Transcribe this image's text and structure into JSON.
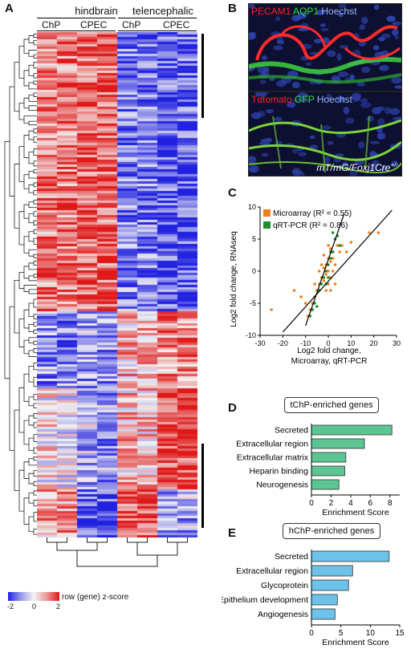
{
  "panels": {
    "A": "A",
    "B": "B",
    "C": "C",
    "D": "D",
    "E": "E"
  },
  "heatmap": {
    "group1": "hindbrain",
    "group2": "telencephalic",
    "cols": [
      "ChP",
      "CPEC",
      "ChP",
      "CPEC"
    ],
    "legend_label": "row (gene) z-score",
    "legend_ticks": [
      "-2",
      "0",
      "2"
    ],
    "colors": {
      "low": "#2121e0",
      "mid": "#f2f2f2",
      "high": "#e01818"
    }
  },
  "microscopy": {
    "top": {
      "label1": "PECAM1",
      "label2": "AQP1",
      "label3": "Hoechst",
      "c1": "#ff2020",
      "c2": "#30e030",
      "c3": "#9ab8ff"
    },
    "bottom": {
      "label1": "Tdtomato",
      "label2": "GFP",
      "label3": "Hoechst",
      "caption": "mT/mG/Foxj1Cre",
      "sup": "+/-",
      "c1": "#ff2020",
      "c2": "#30e030",
      "c3": "#9ab8ff"
    }
  },
  "chart_data": [
    {
      "type": "scatter",
      "xlabel_line1": "Log2 fold change,",
      "xlabel_line2": "Microarray, qRT-PCR",
      "ylabel": "Log2 fold change, RNAseq",
      "xlim": [
        -30,
        30
      ],
      "ylim": [
        -10,
        10
      ],
      "xticks": [
        -30,
        -20,
        -10,
        0,
        10,
        20,
        30
      ],
      "yticks": [
        -10,
        -5,
        0,
        5,
        10
      ],
      "series": [
        {
          "name": "Microarray (R² = 0.55)",
          "color": "#f07f1f",
          "points": [
            [
              -3,
              1
            ],
            [
              -2,
              0.5
            ],
            [
              -1,
              -0.5
            ],
            [
              0,
              0
            ],
            [
              1,
              1.5
            ],
            [
              2,
              2
            ],
            [
              -4,
              -2
            ],
            [
              -5,
              -3
            ],
            [
              -6,
              -4
            ],
            [
              1,
              -1
            ],
            [
              3,
              1
            ],
            [
              -2,
              -1.5
            ],
            [
              0,
              2
            ],
            [
              2,
              3
            ],
            [
              4,
              4
            ],
            [
              -1,
              1
            ],
            [
              -3,
              -1
            ],
            [
              -7,
              -5
            ],
            [
              -8,
              -6
            ],
            [
              5,
              3
            ],
            [
              0,
              -2
            ],
            [
              -1,
              -3
            ],
            [
              2,
              0
            ],
            [
              1,
              3.5
            ],
            [
              -2,
              2.5
            ],
            [
              6,
              4
            ],
            [
              8,
              3
            ],
            [
              -10,
              -5
            ],
            [
              -15,
              -3
            ],
            [
              -25,
              -6
            ],
            [
              22,
              6
            ],
            [
              18,
              6
            ],
            [
              10,
              4.5
            ],
            [
              -12,
              -4
            ],
            [
              -6,
              -2
            ],
            [
              3,
              -2
            ],
            [
              0,
              4
            ],
            [
              -4,
              0
            ],
            [
              1,
              -3
            ],
            [
              -9,
              -7
            ]
          ]
        },
        {
          "name": "qRT-PCR (R² = 0.86)",
          "color": "#1f8f2f",
          "points": [
            [
              -8,
              -7
            ],
            [
              -6,
              -5
            ],
            [
              -5,
              -5.5
            ],
            [
              -4,
              -3
            ],
            [
              -3,
              -2
            ],
            [
              -2,
              -1
            ],
            [
              -1,
              0
            ],
            [
              0,
              1
            ],
            [
              1,
              2
            ],
            [
              2,
              3
            ],
            [
              3,
              5
            ],
            [
              4,
              5.5
            ],
            [
              -7,
              -6
            ],
            [
              2,
              6
            ],
            [
              5,
              4
            ],
            [
              -1,
              -2
            ],
            [
              0,
              -1
            ],
            [
              1,
              3
            ]
          ]
        }
      ],
      "fit_lines": [
        {
          "series": "Microarray",
          "from": [
            -20,
            -9.5
          ],
          "to": [
            28,
            9.5
          ]
        },
        {
          "series": "qRT-PCR",
          "from": [
            -10,
            -8.5
          ],
          "to": [
            7,
            9
          ]
        }
      ]
    },
    {
      "type": "bar",
      "title": "tChP-enriched genes",
      "categories": [
        "Secreted",
        "Extracellular region",
        "Extracellular matrix",
        "Heparin binding",
        "Neurogenesis"
      ],
      "values": [
        8.2,
        5.4,
        3.5,
        3.4,
        2.8
      ],
      "xlim": [
        0,
        9
      ],
      "xticks": [
        0,
        2,
        4,
        6,
        8
      ],
      "xlabel": "Enrichment Score",
      "color": "#5cc592"
    },
    {
      "type": "bar",
      "title": "hChP-enriched genes",
      "categories": [
        "Secreted",
        "Extracellular region",
        "Glycoprotein",
        "Epithelium development",
        "Angiogenesis"
      ],
      "values": [
        13.2,
        7.0,
        6.3,
        4.4,
        4.0
      ],
      "xlim": [
        0,
        15
      ],
      "xticks": [
        0,
        5,
        10,
        15
      ],
      "xlabel": "Enrichment Score",
      "color": "#6cc2e8"
    }
  ]
}
